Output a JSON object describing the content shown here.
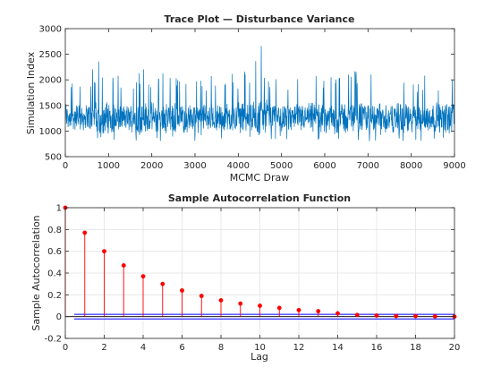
{
  "chart_data": [
    {
      "type": "line",
      "title": "Trace Plot — Disturbance Variance",
      "xlabel": "MCMC Draw",
      "ylabel": "Simulation Index",
      "xlim": [
        0,
        9000
      ],
      "ylim": [
        500,
        3000
      ],
      "xticks": [
        0,
        1000,
        2000,
        3000,
        4000,
        5000,
        6000,
        7000,
        8000,
        9000
      ],
      "yticks": [
        500,
        1000,
        1500,
        2000,
        2500,
        3000
      ],
      "grid": false,
      "series": [
        {
          "color": "#0072BD",
          "x": [
            0,
            250,
            500,
            750,
            1000,
            1250,
            1500,
            1750,
            2000,
            2250,
            2500,
            2750,
            3000,
            3250,
            3500,
            3750,
            4000,
            4250,
            4500,
            4750,
            5000,
            5250,
            5500,
            5750,
            6000,
            6250,
            6500,
            6750,
            7000,
            7250,
            7500,
            7750,
            8000,
            8250,
            8500,
            8750,
            9000
          ],
          "y": [
            1300,
            1250,
            1280,
            1260,
            1270,
            1240,
            1260,
            1250,
            1270,
            1260,
            1250,
            1260,
            1240,
            1250,
            1270,
            1260,
            1280,
            1270,
            1300,
            1280,
            1270,
            1260,
            1250,
            1260,
            1250,
            1240,
            1260,
            1270,
            1250,
            1260,
            1240,
            1250,
            1230,
            1260,
            1270,
            1250,
            1270
          ],
          "range_low": [
            800,
            750,
            800,
            850,
            780,
            800,
            790,
            800,
            810,
            790,
            820,
            800,
            780,
            800,
            820,
            800,
            790,
            780,
            800,
            790,
            810,
            800,
            790,
            800,
            780,
            790,
            820,
            800,
            790,
            800,
            810,
            800,
            700,
            790,
            800,
            810,
            800
          ],
          "range_high": [
            2200,
            2000,
            1950,
            2450,
            2250,
            2100,
            1950,
            2400,
            2200,
            2150,
            2200,
            2100,
            2050,
            2150,
            2050,
            2100,
            2150,
            2250,
            2750,
            2150,
            2050,
            2000,
            2100,
            2200,
            2100,
            2150,
            2350,
            2200,
            2250,
            2150,
            2100,
            2150,
            2000,
            2100,
            2100,
            2150,
            2100
          ]
        }
      ]
    },
    {
      "type": "stem",
      "title": "Sample Autocorrelation Function",
      "xlabel": "Lag",
      "ylabel": "Sample Autocorrelation",
      "xlim": [
        0,
        20
      ],
      "ylim": [
        -0.2,
        1
      ],
      "xticks": [
        0,
        2,
        4,
        6,
        8,
        10,
        12,
        14,
        16,
        18,
        20
      ],
      "yticks": [
        -0.2,
        0,
        0.2,
        0.4,
        0.6,
        0.8,
        1
      ],
      "grid": true,
      "lags": [
        0,
        1,
        2,
        3,
        4,
        5,
        6,
        7,
        8,
        9,
        10,
        11,
        12,
        13,
        14,
        15,
        16,
        17,
        18,
        19,
        20
      ],
      "values": [
        1.0,
        0.77,
        0.6,
        0.47,
        0.37,
        0.3,
        0.24,
        0.19,
        0.15,
        0.12,
        0.1,
        0.08,
        0.06,
        0.05,
        0.03,
        0.015,
        0.01,
        0.005,
        0.005,
        0.002,
        0.0
      ],
      "confidence_bounds": [
        0.021,
        -0.021
      ],
      "stem_color": "#FF0000",
      "bound_color": "#0000FF"
    }
  ]
}
